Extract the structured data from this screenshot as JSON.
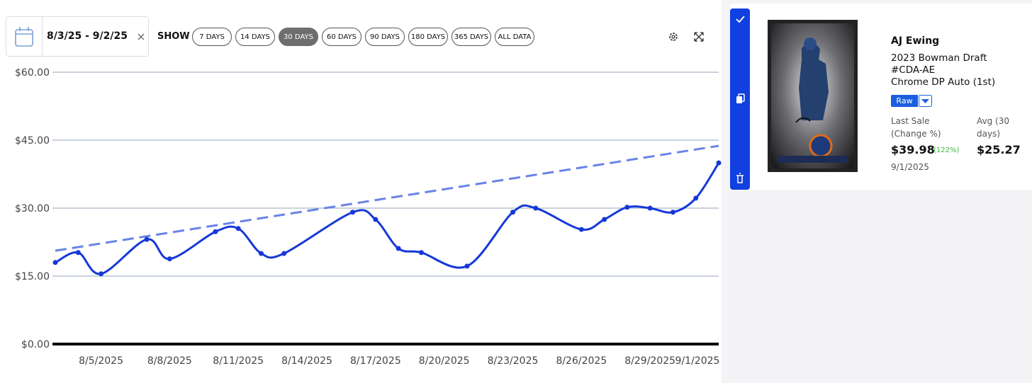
{
  "toolbar": {
    "date_range": "8/3/25 - 9/2/25",
    "show_label": "SHOW",
    "ranges": [
      "7 DAYS",
      "14 DAYS",
      "30 DAYS",
      "60 DAYS",
      "90 DAYS",
      "180 DAYS",
      "365 DAYS",
      "ALL DATA"
    ],
    "active_range_index": 2
  },
  "chart_data": {
    "type": "line",
    "x": [
      "2025-08-03",
      "2025-08-04",
      "2025-08-05",
      "2025-08-07",
      "2025-08-08",
      "2025-08-10",
      "2025-08-11",
      "2025-08-12",
      "2025-08-13",
      "2025-08-16",
      "2025-08-17",
      "2025-08-18",
      "2025-08-19",
      "2025-08-21",
      "2025-08-23",
      "2025-08-24",
      "2025-08-26",
      "2025-08-27",
      "2025-08-28",
      "2025-08-29",
      "2025-08-30",
      "2025-08-31",
      "2025-09-01"
    ],
    "series": [
      {
        "color": "#1538d9",
        "values": [
          18.0,
          20.2,
          15.5,
          23.1,
          18.8,
          24.8,
          25.5,
          20.0,
          20.0,
          29.1,
          27.5,
          21.1,
          20.2,
          17.2,
          29.1,
          30.0,
          25.3,
          27.5,
          30.2,
          30.0,
          29.1,
          32.2,
          39.98
        ]
      }
    ],
    "trend_line": {
      "color": "#6a84e6",
      "dashed": true,
      "x": [
        "2025-08-03",
        "2025-09-01"
      ],
      "values": [
        20.6,
        43.75
      ]
    },
    "xlim": [
      "2025-08-03",
      "2025-09-01"
    ],
    "xticks": [
      {
        "value": "2025-08-05",
        "label": "8/5/2025"
      },
      {
        "value": "2025-08-08",
        "label": "8/8/2025"
      },
      {
        "value": "2025-08-11",
        "label": "8/11/2025"
      },
      {
        "value": "2025-08-14",
        "label": "8/14/2025"
      },
      {
        "value": "2025-08-17",
        "label": "8/17/2025"
      },
      {
        "value": "2025-08-20",
        "label": "8/20/2025"
      },
      {
        "value": "2025-08-23",
        "label": "8/23/2025"
      },
      {
        "value": "2025-08-26",
        "label": "8/26/2025"
      },
      {
        "value": "2025-08-29",
        "label": "8/29/2025"
      },
      {
        "value": "2025-09-01",
        "label": "9/1/2025"
      }
    ],
    "ylim": [
      0,
      60
    ],
    "yticks": [
      {
        "value": 0,
        "label": "$0.00"
      },
      {
        "value": 15,
        "label": "$15.00"
      },
      {
        "value": 30,
        "label": "$30.00"
      },
      {
        "value": 45,
        "label": "$45.00"
      },
      {
        "value": 60,
        "label": "$60.00"
      }
    ],
    "grid": true
  },
  "card": {
    "name": "AJ Ewing",
    "set": "2023 Bowman Draft",
    "number": "#CDA-AE",
    "variant": "Chrome DP Auto (1st)",
    "grade": "Raw",
    "last_sale_label": [
      "Last Sale",
      "(Change %)"
    ],
    "last_sale": "$39.98",
    "change": "(122%)",
    "date": "9/1/2025",
    "avg_label": [
      "Avg (30",
      "days)"
    ],
    "avg": "$25.27"
  }
}
